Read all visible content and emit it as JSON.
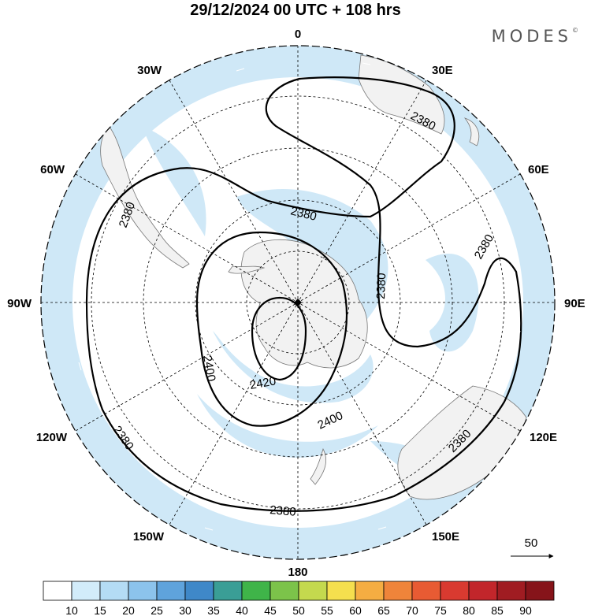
{
  "title": "29/12/2024  00 UTC  + 108 hrs",
  "brand": "MODES",
  "brand_mark": "©",
  "longitude_labels": {
    "top": "0",
    "upper_left": "30W",
    "upper_right": "30E",
    "mid_upper_left": "60W",
    "mid_upper_right": "60E",
    "left": "90W",
    "right": "90E",
    "mid_lower_left": "120W",
    "mid_lower_right": "120E",
    "lower_left": "150W",
    "lower_right": "150E",
    "bottom": "180"
  },
  "contour_labels": [
    "2380",
    "2380",
    "2380",
    "2380",
    "2380",
    "2380",
    "2380",
    "2380",
    "2400",
    "2400",
    "2420"
  ],
  "vector_reference": "50",
  "colorbar": {
    "ticks": [
      "10",
      "15",
      "20",
      "25",
      "30",
      "35",
      "40",
      "45",
      "50",
      "55",
      "60",
      "65",
      "70",
      "75",
      "80",
      "85",
      "90"
    ],
    "colors": [
      "#ffffff",
      "#d2ecfa",
      "#b4dcf5",
      "#8cc3ec",
      "#5fa3dc",
      "#3f88c8",
      "#3a9e96",
      "#3fb449",
      "#7cc34a",
      "#c4d94e",
      "#f5df4e",
      "#f5ad42",
      "#ef843a",
      "#e85b33",
      "#d93a30",
      "#c2262b",
      "#a01c22",
      "#86141a"
    ]
  },
  "colors": {
    "land": "#f2f2f2",
    "jet": "#cfe8f7",
    "ocean": "#ffffff",
    "contour": "#000000"
  }
}
